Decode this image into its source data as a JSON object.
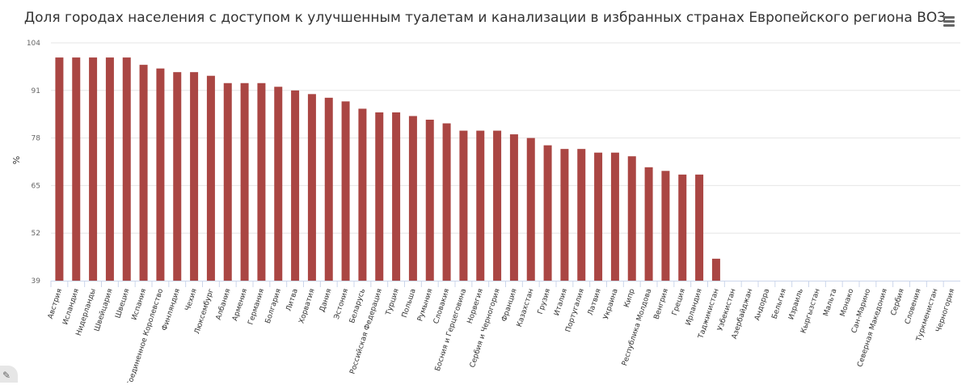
{
  "chart_data": {
    "type": "bar",
    "title": "Доля городах населения с доступом к улучшенным туалетам и канализации в избранных странах Европейского региона ВОЗ",
    "ylabel": "%",
    "xlabel": "",
    "ylim": [
      39,
      104
    ],
    "yticks": [
      39,
      52,
      65,
      78,
      91,
      104
    ],
    "grid": true,
    "legend": "none",
    "color": "#aa4643",
    "categories": [
      "Австрия",
      "Исландия",
      "Нидерланды",
      "Швейцария",
      "Швеция",
      "Испания",
      "Соединенное Королевство",
      "Финляндия",
      "Чехия",
      "Люксембург",
      "Албания",
      "Армения",
      "Германия",
      "Болгария",
      "Литва",
      "Хорватия",
      "Дания",
      "Эстония",
      "Беларусь",
      "Российская Федерация",
      "Турция",
      "Польша",
      "Румыния",
      "Словакия",
      "Босния и Герцеговина",
      "Норвегия",
      "Сербия и Черногория",
      "Франция",
      "Казахстан",
      "Грузия",
      "Италия",
      "Португалия",
      "Латвия",
      "Украина",
      "Кипр",
      "Республика Молдова",
      "Венгрия",
      "Греция",
      "Ирландия",
      "Таджикистан",
      "Узбекистан",
      "Азербайджан",
      "Андорра",
      "Бельгия",
      "Израиль",
      "Кыргызстан",
      "Мальта",
      "Монако",
      "Сан-Марино",
      "Северная Македония",
      "Сербия",
      "Словения",
      "Туркменистан",
      "Черногория"
    ],
    "values": [
      100,
      100,
      100,
      100,
      100,
      98,
      97,
      96,
      96,
      95,
      93,
      93,
      93,
      92,
      91,
      90,
      89,
      88,
      86,
      85,
      85,
      84,
      83,
      82,
      80,
      80,
      80,
      79,
      78,
      76,
      75,
      75,
      74,
      74,
      73,
      70,
      69,
      68,
      68,
      45,
      null,
      null,
      null,
      null,
      null,
      null,
      null,
      null,
      null,
      null,
      null,
      null,
      null,
      null
    ]
  }
}
